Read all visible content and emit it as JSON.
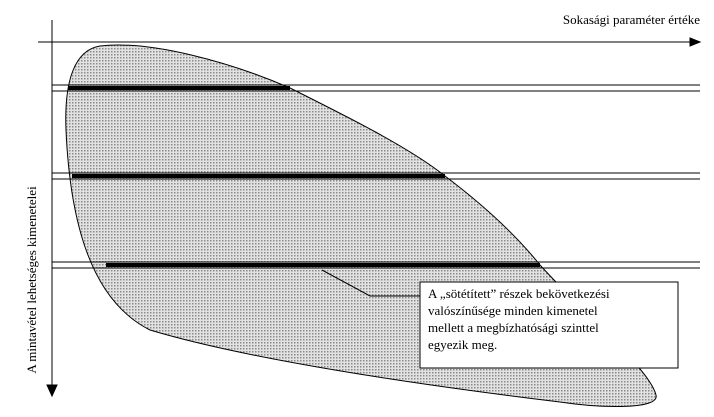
{
  "x_axis_label": "Sokasági paraméter értéke",
  "y_axis_label": "A mintavétel lehetséges kimenetelei",
  "callout": {
    "lines": [
      "A „sötétített” részek bekövetkezési",
      "valószínűsége minden kimenetel",
      "mellett a megbízhatósági szinttel",
      "egyezik meg."
    ]
  }
}
